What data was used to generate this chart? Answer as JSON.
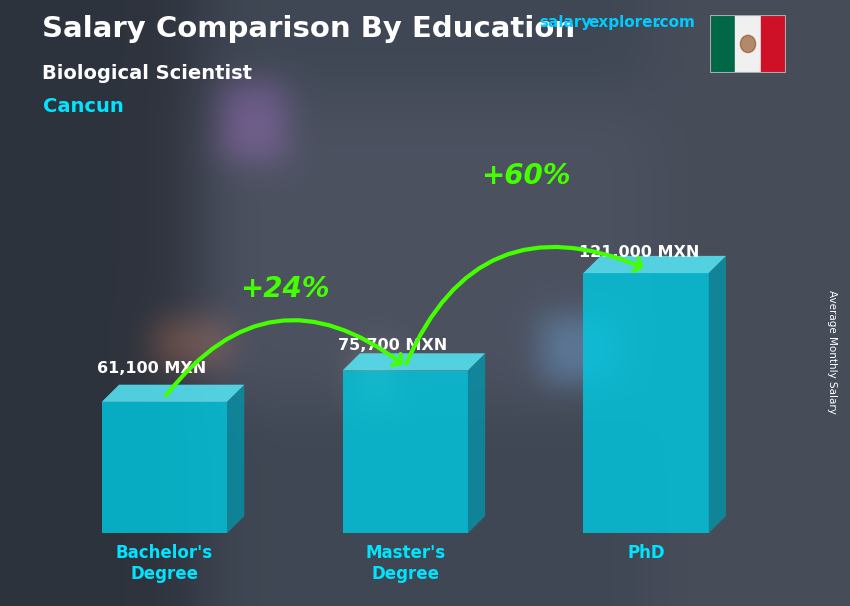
{
  "title": "Salary Comparison By Education",
  "subtitle": "Biological Scientist",
  "location": "Cancun",
  "ylabel": "Average Monthly Salary",
  "website_salary": "salary",
  "website_explorer": "explorer",
  "website_dot_com": ".com",
  "categories": [
    "Bachelor's\nDegree",
    "Master's\nDegree",
    "PhD"
  ],
  "values": [
    61100,
    75700,
    121000
  ],
  "value_labels": [
    "61,100 MXN",
    "75,700 MXN",
    "121,000 MXN"
  ],
  "bar_color_main": "#00c8e0",
  "bar_color_side": "#0099b0",
  "bar_color_top": "#55e0f0",
  "bar_alpha": 0.82,
  "pct_labels": [
    "+24%",
    "+60%"
  ],
  "pct_color": "#44ff00",
  "title_color": "#ffffff",
  "subtitle_color": "#ffffff",
  "location_color": "#00e5ff",
  "value_label_color": "#ffffff",
  "xtick_color": "#00e5ff",
  "bar_positions": [
    1.5,
    4.0,
    6.5
  ],
  "bar_width": 1.3,
  "ylim": [
    0,
    155000
  ],
  "fig_width": 8.5,
  "fig_height": 6.06,
  "bg_color": "#2a2a3a",
  "website_color": "#00ccff",
  "website_com_color": "#00ccff"
}
